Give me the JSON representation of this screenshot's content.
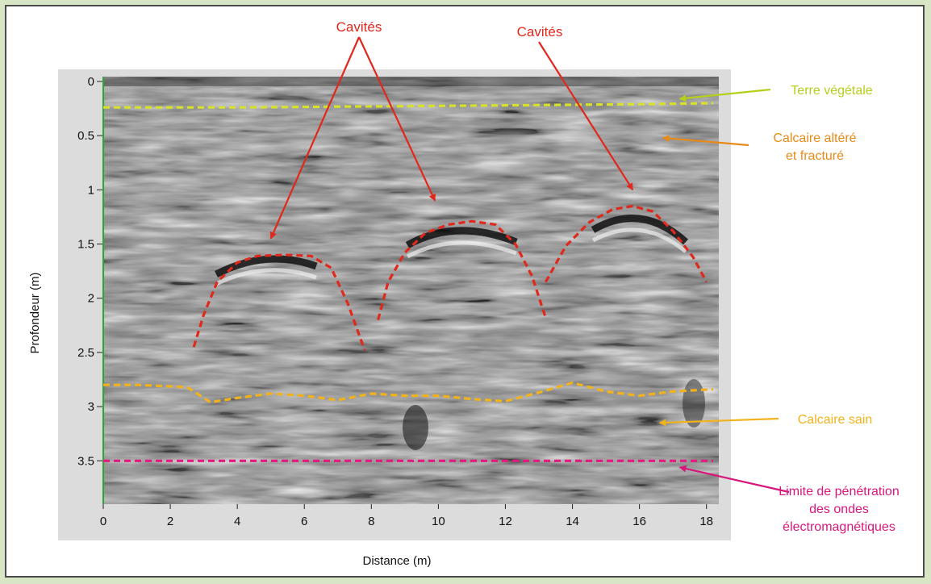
{
  "chart_data": {
    "type": "line",
    "title": "",
    "xlabel": "Distance (m)",
    "ylabel": "Profondeur (m)",
    "xlim": [
      0,
      18.2
    ],
    "ylim": [
      3.9,
      0
    ],
    "y_inverted": true,
    "x_ticks": [
      0,
      2,
      4,
      6,
      8,
      10,
      12,
      14,
      16,
      18
    ],
    "y_ticks": [
      0,
      0.5,
      1,
      1.5,
      2,
      2.5,
      3,
      3.5
    ],
    "y_tick_labels": [
      "0",
      "0.5",
      "1",
      "1.5",
      "2",
      "2.5",
      "3",
      "3.5"
    ],
    "series": [
      {
        "color": "#d7e12a",
        "x": [
          0,
          4,
          8,
          12,
          16,
          18.2
        ],
        "y": [
          0.24,
          0.24,
          0.23,
          0.22,
          0.21,
          0.2
        ]
      },
      {
        "color": "#f2b21b",
        "x": [
          0,
          1,
          2.5,
          3.2,
          4,
          5,
          6,
          7,
          8,
          9,
          10,
          11,
          12,
          13,
          14,
          15,
          16,
          17,
          18.2
        ],
        "y": [
          2.8,
          2.8,
          2.82,
          2.96,
          2.92,
          2.88,
          2.9,
          2.94,
          2.88,
          2.9,
          2.9,
          2.93,
          2.95,
          2.87,
          2.78,
          2.86,
          2.9,
          2.86,
          2.84
        ]
      },
      {
        "color": "#e6197e",
        "x": [
          0,
          18.2
        ],
        "y": [
          3.5,
          3.5
        ]
      },
      {
        "color": "#e0281c",
        "x": [
          2.7,
          3.0,
          3.4,
          4.0,
          4.6,
          5.4,
          6.2,
          6.8,
          7.3,
          7.8
        ],
        "y": [
          2.45,
          2.15,
          1.85,
          1.67,
          1.61,
          1.6,
          1.61,
          1.72,
          2.05,
          2.48
        ]
      },
      {
        "color": "#e0281c",
        "x": [
          8.2,
          8.5,
          9.0,
          9.6,
          10.3,
          11.0,
          11.7,
          12.3,
          12.8,
          13.2
        ],
        "y": [
          2.2,
          1.85,
          1.58,
          1.4,
          1.32,
          1.29,
          1.32,
          1.5,
          1.8,
          2.18
        ]
      },
      {
        "color": "#e0281c",
        "x": [
          13.2,
          13.8,
          14.5,
          15.2,
          15.8,
          16.4,
          17.0,
          17.6,
          18.0
        ],
        "y": [
          1.85,
          1.52,
          1.3,
          1.18,
          1.15,
          1.2,
          1.38,
          1.62,
          1.85
        ]
      }
    ],
    "annotations": [
      {
        "text": "Cavités",
        "color": "#e0281c",
        "arrows_to": [
          [
            5.0,
            1.45
          ],
          [
            9.9,
            1.1
          ]
        ]
      },
      {
        "text": "Cavités",
        "color": "#e0281c",
        "arrows_to": [
          [
            15.8,
            1.0
          ]
        ]
      },
      {
        "text": "Terre végétale",
        "color": "#b5cf1a",
        "arrow_to": [
          17.2,
          0.16
        ]
      },
      {
        "text": "Calcaire altéré",
        "color": "#e88a17",
        "arrow_to": [
          16.7,
          0.52
        ]
      },
      {
        "text": "et fracturé",
        "color": "#e88a17"
      },
      {
        "text": "Calcaire  sain",
        "color": "#f2b21b",
        "arrow_to": [
          16.6,
          3.15
        ]
      },
      {
        "text": "Limite de pénétration",
        "color": "#d8177c",
        "arrow_to": [
          17.2,
          3.56
        ]
      },
      {
        "text": "des ondes",
        "color": "#d8177c"
      },
      {
        "text": "électromagnétiques",
        "color": "#d8177c"
      }
    ]
  }
}
